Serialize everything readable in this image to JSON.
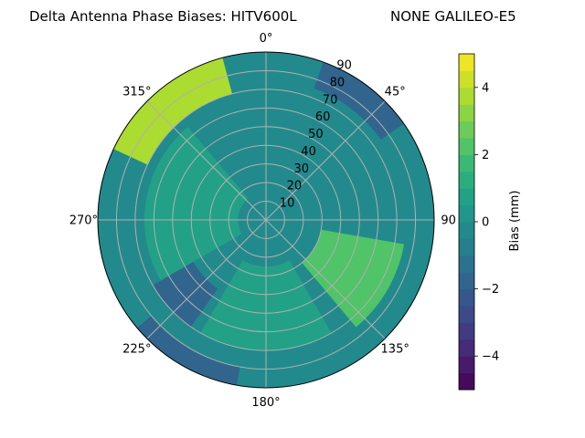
{
  "chart_data": {
    "type": "polar-contour",
    "title": "Delta Antenna Phase Biases: HITV600L",
    "subtitle": "NONE GALILEO-E5",
    "angular_axis": {
      "direction": "clockwise",
      "zero_location": "top",
      "tick_labels": [
        {
          "angle": 0,
          "label": "0°"
        },
        {
          "angle": 45,
          "label": "45°"
        },
        {
          "angle": 90,
          "label": "90"
        },
        {
          "angle": 135,
          "label": "135°"
        },
        {
          "angle": 180,
          "label": "180°"
        },
        {
          "angle": 225,
          "label": "225°"
        },
        {
          "angle": 270,
          "label": "270°"
        },
        {
          "angle": 315,
          "label": "315°"
        }
      ]
    },
    "radial_axis": {
      "range": [
        0,
        90
      ],
      "ticks": [
        10,
        20,
        30,
        40,
        50,
        60,
        70,
        80,
        90
      ],
      "tick_labels": [
        "10",
        "20",
        "30",
        "40",
        "50",
        "60",
        "70",
        "80",
        "90"
      ],
      "grid": true
    },
    "colorbar": {
      "label": "Bias (mm)",
      "range": [
        -5,
        5
      ],
      "levels": [
        -5,
        -4.5,
        -4,
        -3.5,
        -3,
        -2.5,
        -2,
        -1.5,
        -1,
        -0.5,
        0,
        0.5,
        1,
        1.5,
        2,
        2.5,
        3,
        3.5,
        4,
        4.5,
        5
      ],
      "ticks": [
        -4,
        -2,
        0,
        2,
        4
      ],
      "tick_labels": [
        "−4",
        "−2",
        "0",
        "2",
        "4"
      ],
      "colormap": "viridis"
    },
    "regions": [
      {
        "azimuth_range": [
          0,
          360
        ],
        "zenith_range": [
          0,
          90
        ],
        "value": -0.3,
        "note": "background"
      },
      {
        "azimuth_range": [
          295,
          345
        ],
        "zenith_range": [
          70,
          90
        ],
        "value": 3.5
      },
      {
        "azimuth_range": [
          20,
          55
        ],
        "zenith_range": [
          75,
          90
        ],
        "value": -2.0
      },
      {
        "azimuth_range": [
          240,
          320
        ],
        "zenith_range": [
          15,
          65
        ],
        "value": 0.6
      },
      {
        "azimuth_range": [
          100,
          140
        ],
        "zenith_range": [
          30,
          75
        ],
        "value": 2.4
      },
      {
        "azimuth_range": [
          150,
          210
        ],
        "zenith_range": [
          25,
          70
        ],
        "value": 0.9
      },
      {
        "azimuth_range": [
          215,
          240
        ],
        "zenith_range": [
          45,
          70
        ],
        "value": -1.7
      },
      {
        "azimuth_range": [
          190,
          230
        ],
        "zenith_range": [
          80,
          90
        ],
        "value": -2.0
      }
    ]
  }
}
